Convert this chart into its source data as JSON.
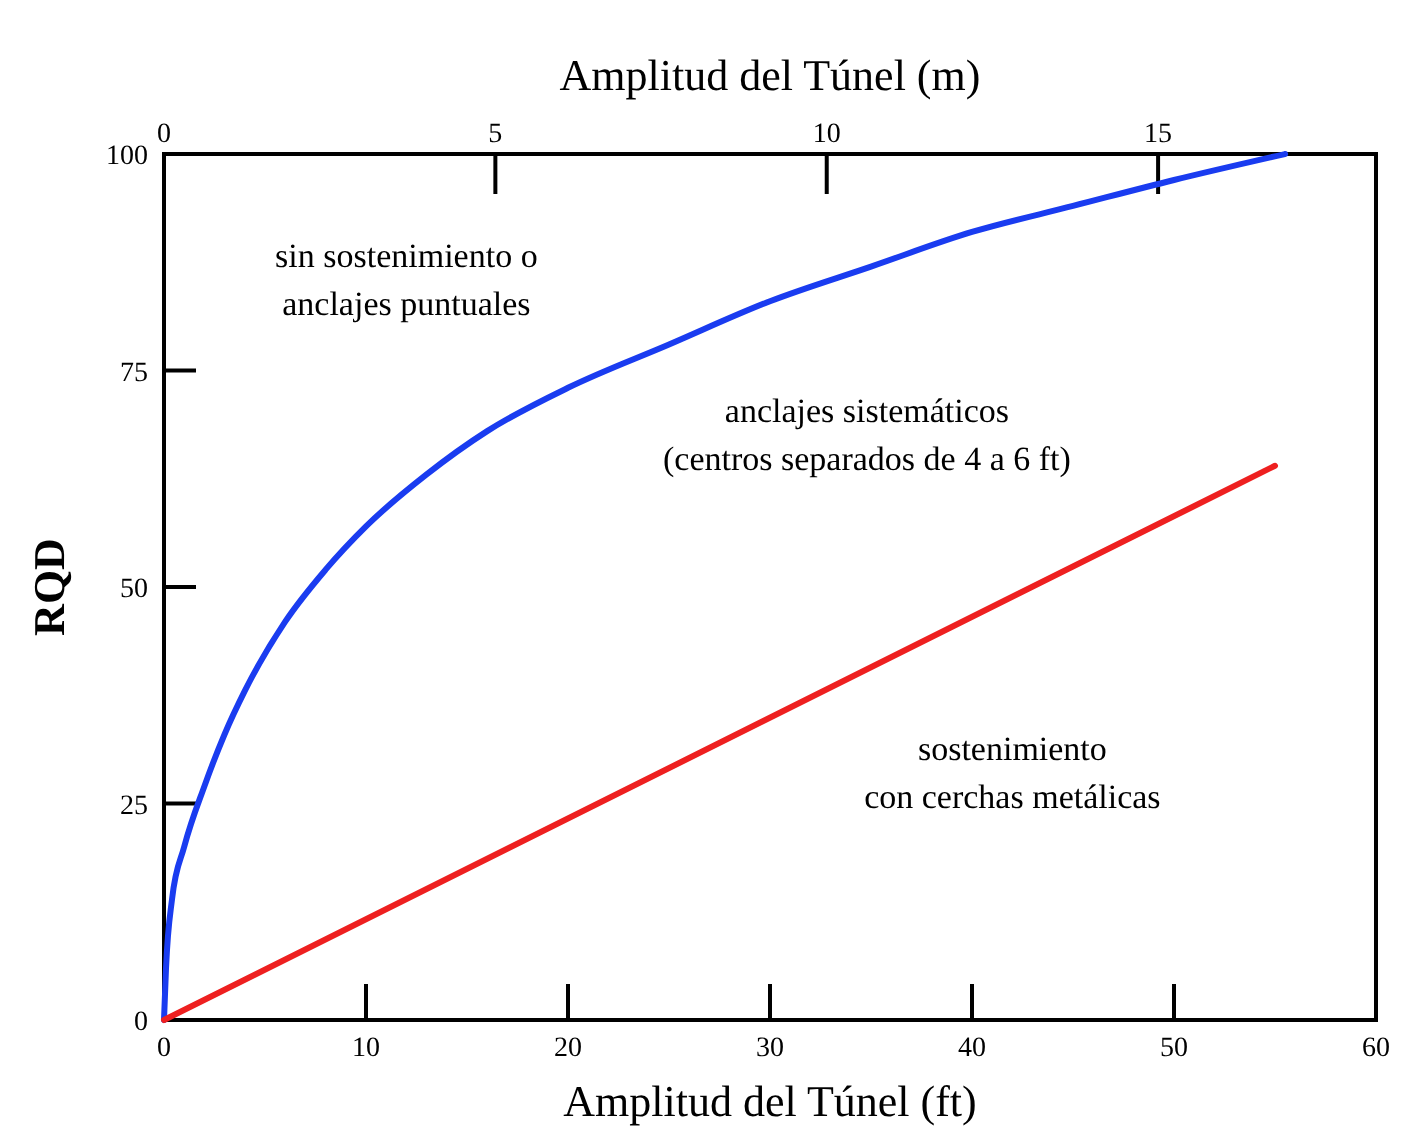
{
  "chart_data": {
    "type": "line",
    "xlabel": "Amplitud del Túnel (ft)",
    "ylabel": "RQD",
    "x2label": "Amplitud del Túnel (m)",
    "xlim": [
      0,
      60
    ],
    "xticks": [
      0,
      10,
      20,
      30,
      40,
      50,
      60
    ],
    "ylim": [
      0,
      100
    ],
    "yticks": [
      0,
      25,
      50,
      75,
      100
    ],
    "x2lim": [
      0,
      18.288
    ],
    "x2ticks": [
      0,
      5,
      10,
      15
    ],
    "grid": false,
    "marker": "none",
    "line_style": "solid",
    "series": [
      {
        "color": "#1a3cf0",
        "x": [
          0,
          0.1,
          0.4,
          1,
          2,
          3,
          4,
          6,
          8,
          10,
          13,
          16,
          20,
          25,
          30,
          35,
          40,
          45,
          50,
          55.5
        ],
        "values": [
          0,
          6,
          14,
          20,
          27,
          33,
          38,
          46,
          52,
          57,
          63,
          68,
          73,
          78,
          83,
          87,
          91,
          94,
          97,
          100
        ]
      },
      {
        "color": "#ee2020",
        "x": [
          0,
          55
        ],
        "values": [
          0,
          64
        ]
      }
    ],
    "annotations": [
      "sin sostenimiento o\nanclajes puntuales",
      "anclajes sistemáticos\n(centros separados de 4 a 6 ft)",
      "sostenimiento\ncon cerchas metálicas"
    ]
  }
}
